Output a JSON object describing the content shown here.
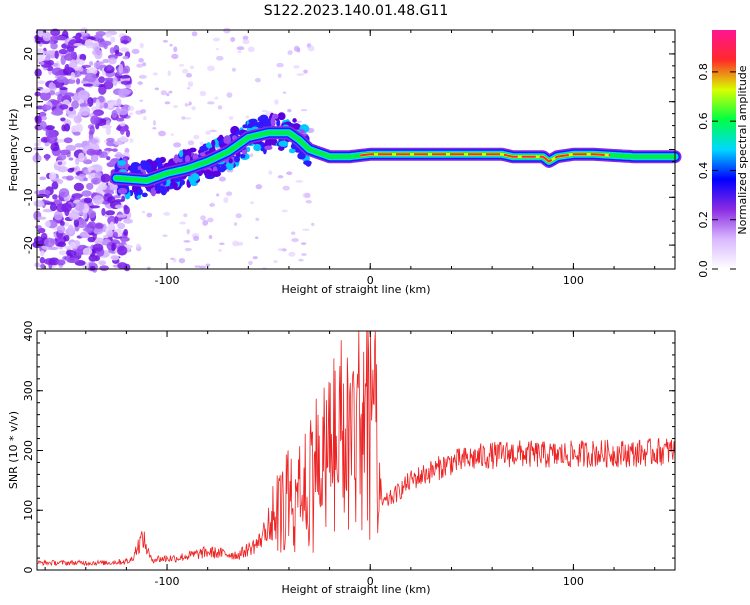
{
  "title": "S122.2023.140.01.48.G11",
  "chart_data": [
    {
      "type": "heatmap",
      "title": "S122.2023.140.01.48.G11",
      "xlabel": "Height of straight line (km)",
      "ylabel": "Frequency (Hz)",
      "xlim": [
        -164,
        150
      ],
      "ylim": [
        -25,
        25
      ],
      "x_ticks": [
        -100,
        0,
        100
      ],
      "y_ticks": [
        -20,
        -10,
        0,
        10,
        20
      ],
      "colorbar": {
        "label": "Normalized spectral amplitude",
        "range": [
          0,
          0.97
        ],
        "ticks": [
          0.0,
          0.2,
          0.4,
          0.6,
          0.8
        ],
        "colormap": [
          "#ffffff",
          "#d9b8ff",
          "#8a2be2",
          "#0000ff",
          "#00d8ff",
          "#00ff44",
          "#d8ff00",
          "#ff2a2a",
          "#ff1493"
        ]
      },
      "ridge_centerline": [
        {
          "x": -125,
          "y": -6
        },
        {
          "x": -110,
          "y": -6.5
        },
        {
          "x": -100,
          "y": -5
        },
        {
          "x": -90,
          "y": -4
        },
        {
          "x": -80,
          "y": -2.5
        },
        {
          "x": -70,
          "y": -0.5
        },
        {
          "x": -60,
          "y": 2.5
        },
        {
          "x": -50,
          "y": 3.5
        },
        {
          "x": -40,
          "y": 3.5
        },
        {
          "x": -35,
          "y": 2
        },
        {
          "x": -30,
          "y": 0
        },
        {
          "x": -20,
          "y": -1.5
        },
        {
          "x": -10,
          "y": -1.5
        },
        {
          "x": 0,
          "y": -1
        },
        {
          "x": 20,
          "y": -1
        },
        {
          "x": 40,
          "y": -1
        },
        {
          "x": 65,
          "y": -1
        },
        {
          "x": 70,
          "y": -1.5
        },
        {
          "x": 85,
          "y": -1.5
        },
        {
          "x": 88,
          "y": -2.5
        },
        {
          "x": 92,
          "y": -1.5
        },
        {
          "x": 100,
          "y": -1
        },
        {
          "x": 110,
          "y": -1
        },
        {
          "x": 130,
          "y": -1.5
        },
        {
          "x": 150,
          "y": -1.5
        }
      ]
    },
    {
      "type": "line",
      "xlabel": "Height of straight line (km)",
      "ylabel": "SNR (10 * v/v)",
      "xlim": [
        -164,
        150
      ],
      "ylim": [
        0,
        400
      ],
      "x_ticks": [
        -100,
        0,
        100
      ],
      "y_ticks": [
        0,
        100,
        200,
        300,
        400
      ],
      "line_color": "#ee2222",
      "envelope": [
        {
          "x": -164,
          "y": 12
        },
        {
          "x": -130,
          "y": 12
        },
        {
          "x": -118,
          "y": 15
        },
        {
          "x": -112,
          "y": 55
        },
        {
          "x": -108,
          "y": 18
        },
        {
          "x": -95,
          "y": 20
        },
        {
          "x": -80,
          "y": 30
        },
        {
          "x": -65,
          "y": 25
        },
        {
          "x": -55,
          "y": 45
        },
        {
          "x": -45,
          "y": 110
        },
        {
          "x": -35,
          "y": 165
        },
        {
          "x": -30,
          "y": 185
        },
        {
          "x": -25,
          "y": 200
        },
        {
          "x": -15,
          "y": 260
        },
        {
          "x": -8,
          "y": 250
        },
        {
          "x": -2,
          "y": 300
        },
        {
          "x": 1,
          "y": 340
        },
        {
          "x": 4,
          "y": 180
        },
        {
          "x": 6,
          "y": 110
        },
        {
          "x": 12,
          "y": 125
        },
        {
          "x": 20,
          "y": 150
        },
        {
          "x": 30,
          "y": 165
        },
        {
          "x": 40,
          "y": 180
        },
        {
          "x": 55,
          "y": 190
        },
        {
          "x": 70,
          "y": 195
        },
        {
          "x": 90,
          "y": 192
        },
        {
          "x": 110,
          "y": 195
        },
        {
          "x": 130,
          "y": 195
        },
        {
          "x": 150,
          "y": 200
        }
      ]
    }
  ]
}
